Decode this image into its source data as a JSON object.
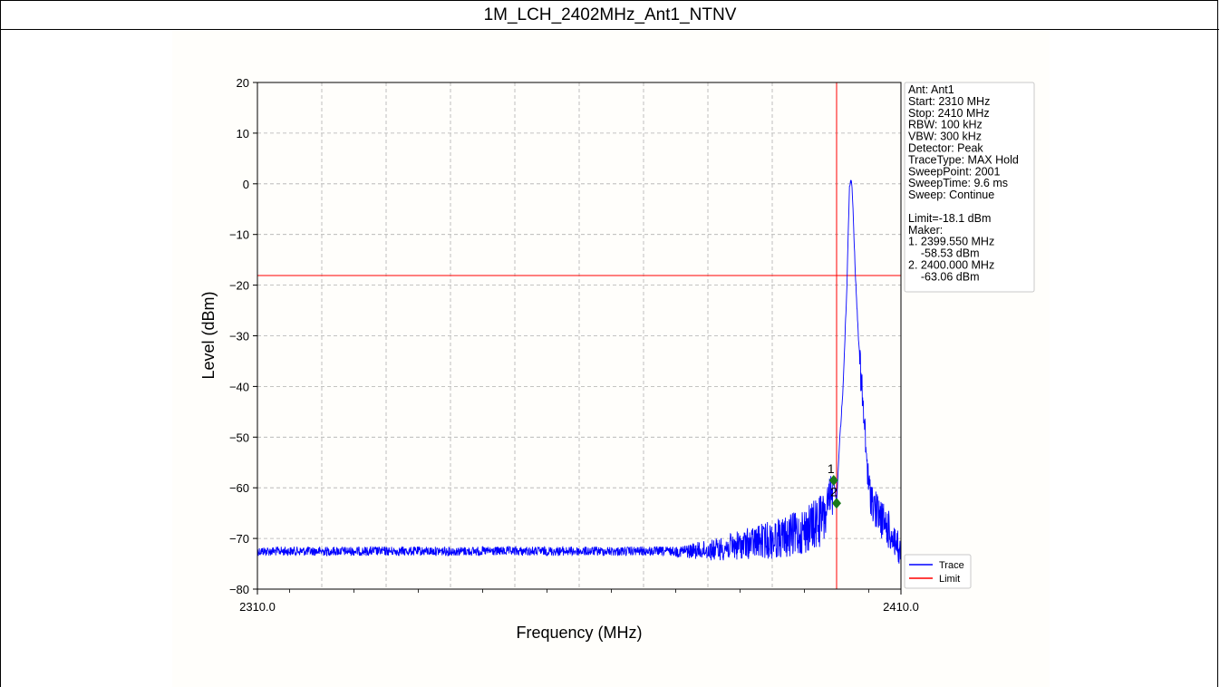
{
  "page": {
    "title": "1M_LCH_2402MHz_Ant1_NTNV"
  },
  "chart_data": {
    "type": "line",
    "title": "1M_LCH_2402MHz_Ant1_NTNV",
    "xlabel": "Frequency (MHz)",
    "ylabel": "Level (dBm)",
    "xlim": [
      2310.0,
      2410.0
    ],
    "ylim": [
      -80,
      20
    ],
    "x_tick_labels": [
      "2310.0",
      "2410.0"
    ],
    "x_minor_ticks": [
      2315,
      2325,
      2335,
      2345,
      2355,
      2365,
      2375,
      2385,
      2395,
      2405
    ],
    "y_ticks": [
      20,
      10,
      0,
      -10,
      -20,
      -30,
      -40,
      -50,
      -60,
      -70,
      -80
    ],
    "y_tick_labels": [
      "20",
      "10",
      "0",
      "−10",
      "−20",
      "−30",
      "−40",
      "−50",
      "−60",
      "−70",
      "−80"
    ],
    "grid": true,
    "limit": -18.1,
    "marker_line_x": 2400.0,
    "series": [
      {
        "name": "Trace",
        "color": "#0000ff",
        "envelope": {
          "x": [
            2310,
            2375,
            2378,
            2381,
            2384,
            2387,
            2390,
            2393,
            2396,
            2398,
            2399.55,
            2400.0,
            2400.5,
            2401.0,
            2401.3,
            2401.6,
            2401.8,
            2402.0,
            2402.2,
            2402.4,
            2402.7,
            2403.0,
            2403.4,
            2404.0,
            2405.0,
            2406.0,
            2407.0,
            2408.0,
            2409.0,
            2410.0
          ],
          "y": [
            -72,
            -72,
            -71.5,
            -71,
            -70,
            -69,
            -68,
            -67,
            -65,
            -63,
            -58.53,
            -63.06,
            -50,
            -40,
            -30,
            -20,
            -10,
            0,
            1,
            0,
            -10,
            -20,
            -30,
            -40,
            -58,
            -62,
            -64,
            -66,
            -68,
            -72
          ]
        }
      },
      {
        "name": "Limit",
        "color": "#ff0000",
        "y": -18.1
      }
    ],
    "markers": [
      {
        "label": "1",
        "x": 2399.55,
        "y": -58.53
      },
      {
        "label": "2",
        "x": 2400.0,
        "y": -63.06
      }
    ],
    "legend": {
      "placement": "bottom-right",
      "entries": [
        "Trace",
        "Limit"
      ]
    },
    "info_box": {
      "placement": "top-right",
      "lines": [
        "Ant: Ant1",
        "Start: 2310 MHz",
        "Stop: 2410 MHz",
        "RBW: 100 kHz",
        "VBW: 300 kHz",
        "Detector: Peak",
        "TraceType: MAX Hold",
        "SweepPoint: 2001",
        "SweepTime: 9.6 ms",
        "Sweep: Continue",
        "",
        "Limit=-18.1 dBm",
        "Maker:",
        "1. 2399.550 MHz",
        "    -58.53 dBm",
        "2. 2400.000 MHz",
        "    -63.06 dBm"
      ]
    }
  }
}
